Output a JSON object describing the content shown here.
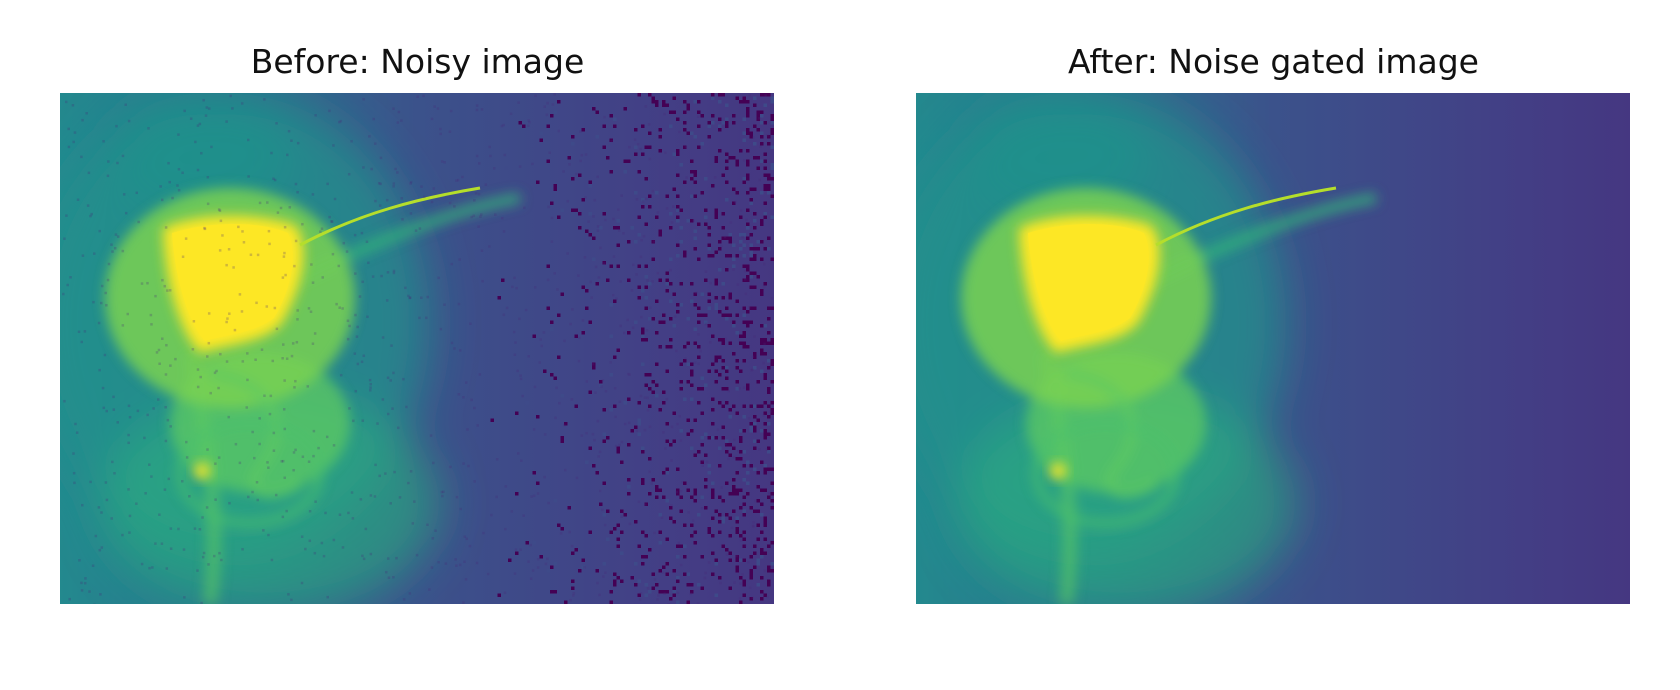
{
  "figure": {
    "panels": [
      {
        "title": "Before: Noisy image",
        "colormap": "viridis",
        "noisy": true
      },
      {
        "title": "After: Noise gated image",
        "colormap": "viridis",
        "noisy": false
      }
    ]
  },
  "colors": {
    "background": "#ffffff",
    "viridis_dark": "#440154",
    "viridis_blue": "#3b528b",
    "viridis_teal": "#21918c",
    "viridis_green": "#5ec962",
    "viridis_yellow": "#fde725"
  }
}
